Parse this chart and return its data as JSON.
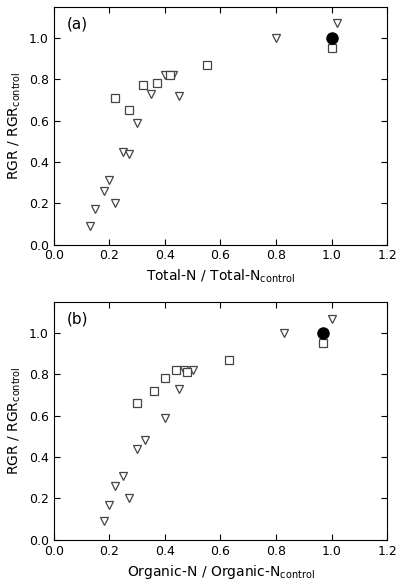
{
  "panel_a": {
    "label": "(a)",
    "xlabel": "Total-N / Total-N",
    "xlabel_sub": "control",
    "ylabel": "RGR / RGR",
    "ylabel_sub": "control",
    "triangles_x": [
      0.13,
      0.15,
      0.18,
      0.2,
      0.22,
      0.25,
      0.27,
      0.3,
      0.35,
      0.4,
      0.43,
      0.45,
      0.8,
      1.0,
      1.02
    ],
    "triangles_y": [
      0.09,
      0.17,
      0.26,
      0.31,
      0.2,
      0.45,
      0.44,
      0.59,
      0.73,
      0.82,
      0.82,
      0.72,
      1.0,
      1.0,
      1.07
    ],
    "squares_x": [
      0.22,
      0.27,
      0.32,
      0.37,
      0.42,
      0.55,
      1.0
    ],
    "squares_y": [
      0.71,
      0.65,
      0.77,
      0.78,
      0.82,
      0.87,
      0.95
    ],
    "filled_x": [
      1.0
    ],
    "filled_y": [
      1.0
    ],
    "xlim": [
      0.0,
      1.2
    ],
    "ylim": [
      0.0,
      1.15
    ],
    "xticks": [
      0.0,
      0.2,
      0.4,
      0.6,
      0.8,
      1.0,
      1.2
    ],
    "yticks": [
      0.0,
      0.2,
      0.4,
      0.6,
      0.8,
      1.0
    ]
  },
  "panel_b": {
    "label": "(b)",
    "xlabel": "Organic-N / Organic-N",
    "xlabel_sub": "control",
    "ylabel": "RGR / RGR",
    "ylabel_sub": "control",
    "triangles_x": [
      0.18,
      0.2,
      0.22,
      0.25,
      0.27,
      0.3,
      0.33,
      0.4,
      0.45,
      0.47,
      0.5,
      0.83,
      0.97,
      1.0
    ],
    "triangles_y": [
      0.09,
      0.17,
      0.26,
      0.31,
      0.2,
      0.44,
      0.48,
      0.59,
      0.73,
      0.82,
      0.82,
      1.0,
      1.0,
      1.07
    ],
    "squares_x": [
      0.3,
      0.36,
      0.4,
      0.44,
      0.48,
      0.63,
      0.97
    ],
    "squares_y": [
      0.66,
      0.72,
      0.78,
      0.82,
      0.81,
      0.87,
      0.95
    ],
    "filled_x": [
      0.97
    ],
    "filled_y": [
      1.0
    ],
    "xlim": [
      0.0,
      1.2
    ],
    "ylim": [
      0.0,
      1.15
    ],
    "xticks": [
      0.0,
      0.2,
      0.4,
      0.6,
      0.8,
      1.0,
      1.2
    ],
    "yticks": [
      0.0,
      0.2,
      0.4,
      0.6,
      0.8,
      1.0
    ]
  },
  "background_color": "#ffffff",
  "filled_color": "#000000",
  "marker_edge_color": "#444444",
  "triangle_size": 6,
  "square_size": 6,
  "filled_size": 8,
  "label_fontsize": 11,
  "tick_labelsize": 9,
  "axis_labelsize": 10
}
